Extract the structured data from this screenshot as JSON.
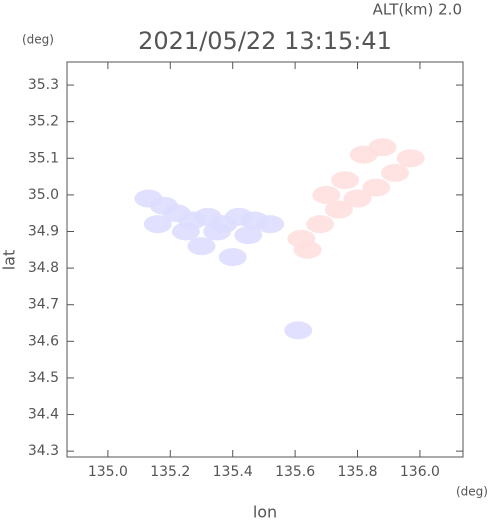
{
  "chart_data": {
    "type": "scatter",
    "title": "2021/05/22 13:15:41",
    "subtitle": "ALT(km) 2.0",
    "x_label": "lon",
    "y_label": "lat",
    "x_unit": "(deg)",
    "y_unit": "(deg)",
    "xlim": [
      134.869,
      136.138
    ],
    "ylim": [
      34.284,
      35.363
    ],
    "xticks": [
      {
        "value": 135,
        "label": "135.0"
      },
      135.2,
      135.4,
      135.6,
      135.8,
      {
        "value": 136,
        "label": "136.0"
      }
    ],
    "yticks": [
      34.3,
      34.4,
      34.5,
      34.6,
      34.7,
      34.8,
      34.9,
      {
        "value": 35,
        "label": "35.0"
      },
      35.1,
      35.2,
      35.3
    ],
    "series": [
      {
        "color": "#dcdcff",
        "x": [
          135.13,
          135.18,
          135.22,
          135.27,
          135.32,
          135.37,
          135.42,
          135.47,
          135.52,
          135.16,
          135.25,
          135.35,
          135.45,
          135.3,
          135.4,
          135.61
        ],
        "values": [
          34.99,
          34.97,
          34.95,
          34.93,
          34.94,
          34.92,
          34.94,
          34.93,
          34.92,
          34.92,
          34.9,
          34.9,
          34.89,
          34.86,
          34.83,
          34.63
        ]
      },
      {
        "color": "#ffdede",
        "x": [
          135.62,
          135.68,
          135.74,
          135.8,
          135.86,
          135.92,
          135.97,
          135.82,
          135.88,
          135.76,
          135.7,
          135.64
        ],
        "values": [
          34.88,
          34.92,
          34.96,
          34.99,
          35.02,
          35.06,
          35.1,
          35.11,
          35.13,
          35.04,
          35.0,
          34.85
        ]
      }
    ]
  }
}
